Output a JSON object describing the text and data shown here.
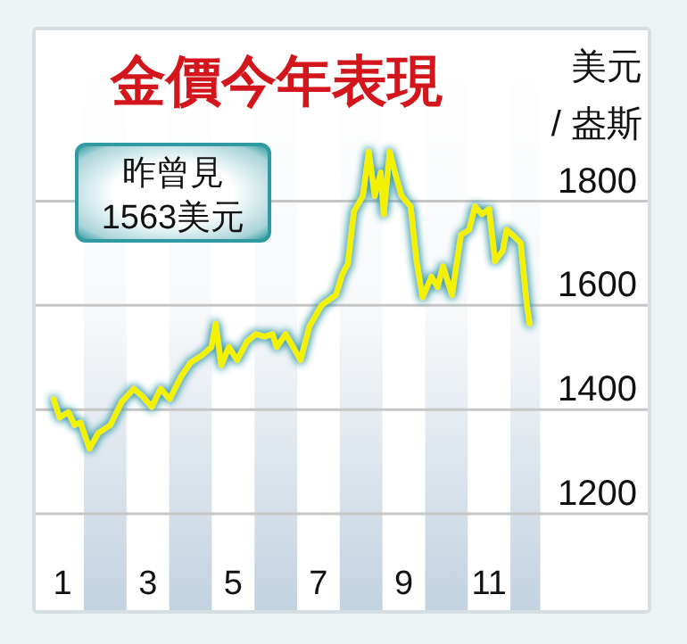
{
  "chart_data": {
    "type": "line",
    "title": "金價今年表現",
    "ylabel": "美元 / 盎斯",
    "annotations": [
      "昨曾見 1563美元"
    ],
    "x": [
      0.79,
      0.93,
      1.14,
      1.28,
      1.42,
      1.63,
      1.84,
      2.12,
      2.39,
      2.67,
      2.88,
      3.09,
      3.3,
      3.51,
      3.79,
      4.0,
      4.28,
      4.49,
      4.59,
      4.72,
      4.9,
      5.09,
      5.32,
      5.53,
      5.74,
      5.92,
      6.02,
      6.23,
      6.44,
      6.58,
      6.79,
      7.07,
      7.41,
      7.56,
      7.69,
      7.83,
      8.04,
      8.18,
      8.32,
      8.46,
      8.53,
      8.67,
      8.81,
      8.95,
      9.16,
      9.3,
      9.44,
      9.65,
      9.79,
      9.92,
      10.13,
      10.34,
      10.53,
      10.67,
      10.83,
      11.0,
      11.14,
      11.32,
      11.41,
      11.55,
      11.74,
      11.88,
      11.95
    ],
    "series": [
      {
        "color": "#f2f200",
        "values": [
          1420,
          1385,
          1395,
          1370,
          1375,
          1325,
          1355,
          1370,
          1415,
          1440,
          1425,
          1405,
          1440,
          1420,
          1465,
          1490,
          1505,
          1520,
          1565,
          1485,
          1520,
          1495,
          1530,
          1545,
          1540,
          1545,
          1520,
          1545,
          1515,
          1495,
          1560,
          1600,
          1620,
          1660,
          1680,
          1780,
          1810,
          1895,
          1810,
          1855,
          1775,
          1895,
          1850,
          1810,
          1790,
          1685,
          1615,
          1655,
          1635,
          1675,
          1620,
          1735,
          1745,
          1790,
          1775,
          1785,
          1685,
          1705,
          1745,
          1735,
          1720,
          1605,
          1565
        ]
      }
    ],
    "xlim": [
      0.37,
      14.72
    ],
    "ylim": [
      1015,
      2128
    ],
    "xticks": [
      1,
      3,
      5,
      7,
      9,
      11
    ],
    "yticks": [
      1200,
      1400,
      1600,
      1800
    ],
    "grid": "y",
    "bands": [
      {
        "axis": "x",
        "from": 1.5,
        "to": 2.5,
        "color": "#c3d2df"
      },
      {
        "axis": "x",
        "from": 3.5,
        "to": 4.5,
        "color": "#c3d2df"
      },
      {
        "axis": "x",
        "from": 5.5,
        "to": 6.5,
        "color": "#c3d2df"
      },
      {
        "axis": "x",
        "from": 7.5,
        "to": 8.5,
        "color": "#c3d2df"
      },
      {
        "axis": "x",
        "from": 9.5,
        "to": 10.5,
        "color": "#c3d2df"
      },
      {
        "axis": "x",
        "from": 11.5,
        "to": 12.2,
        "color": "#c3d2df"
      }
    ]
  }
}
